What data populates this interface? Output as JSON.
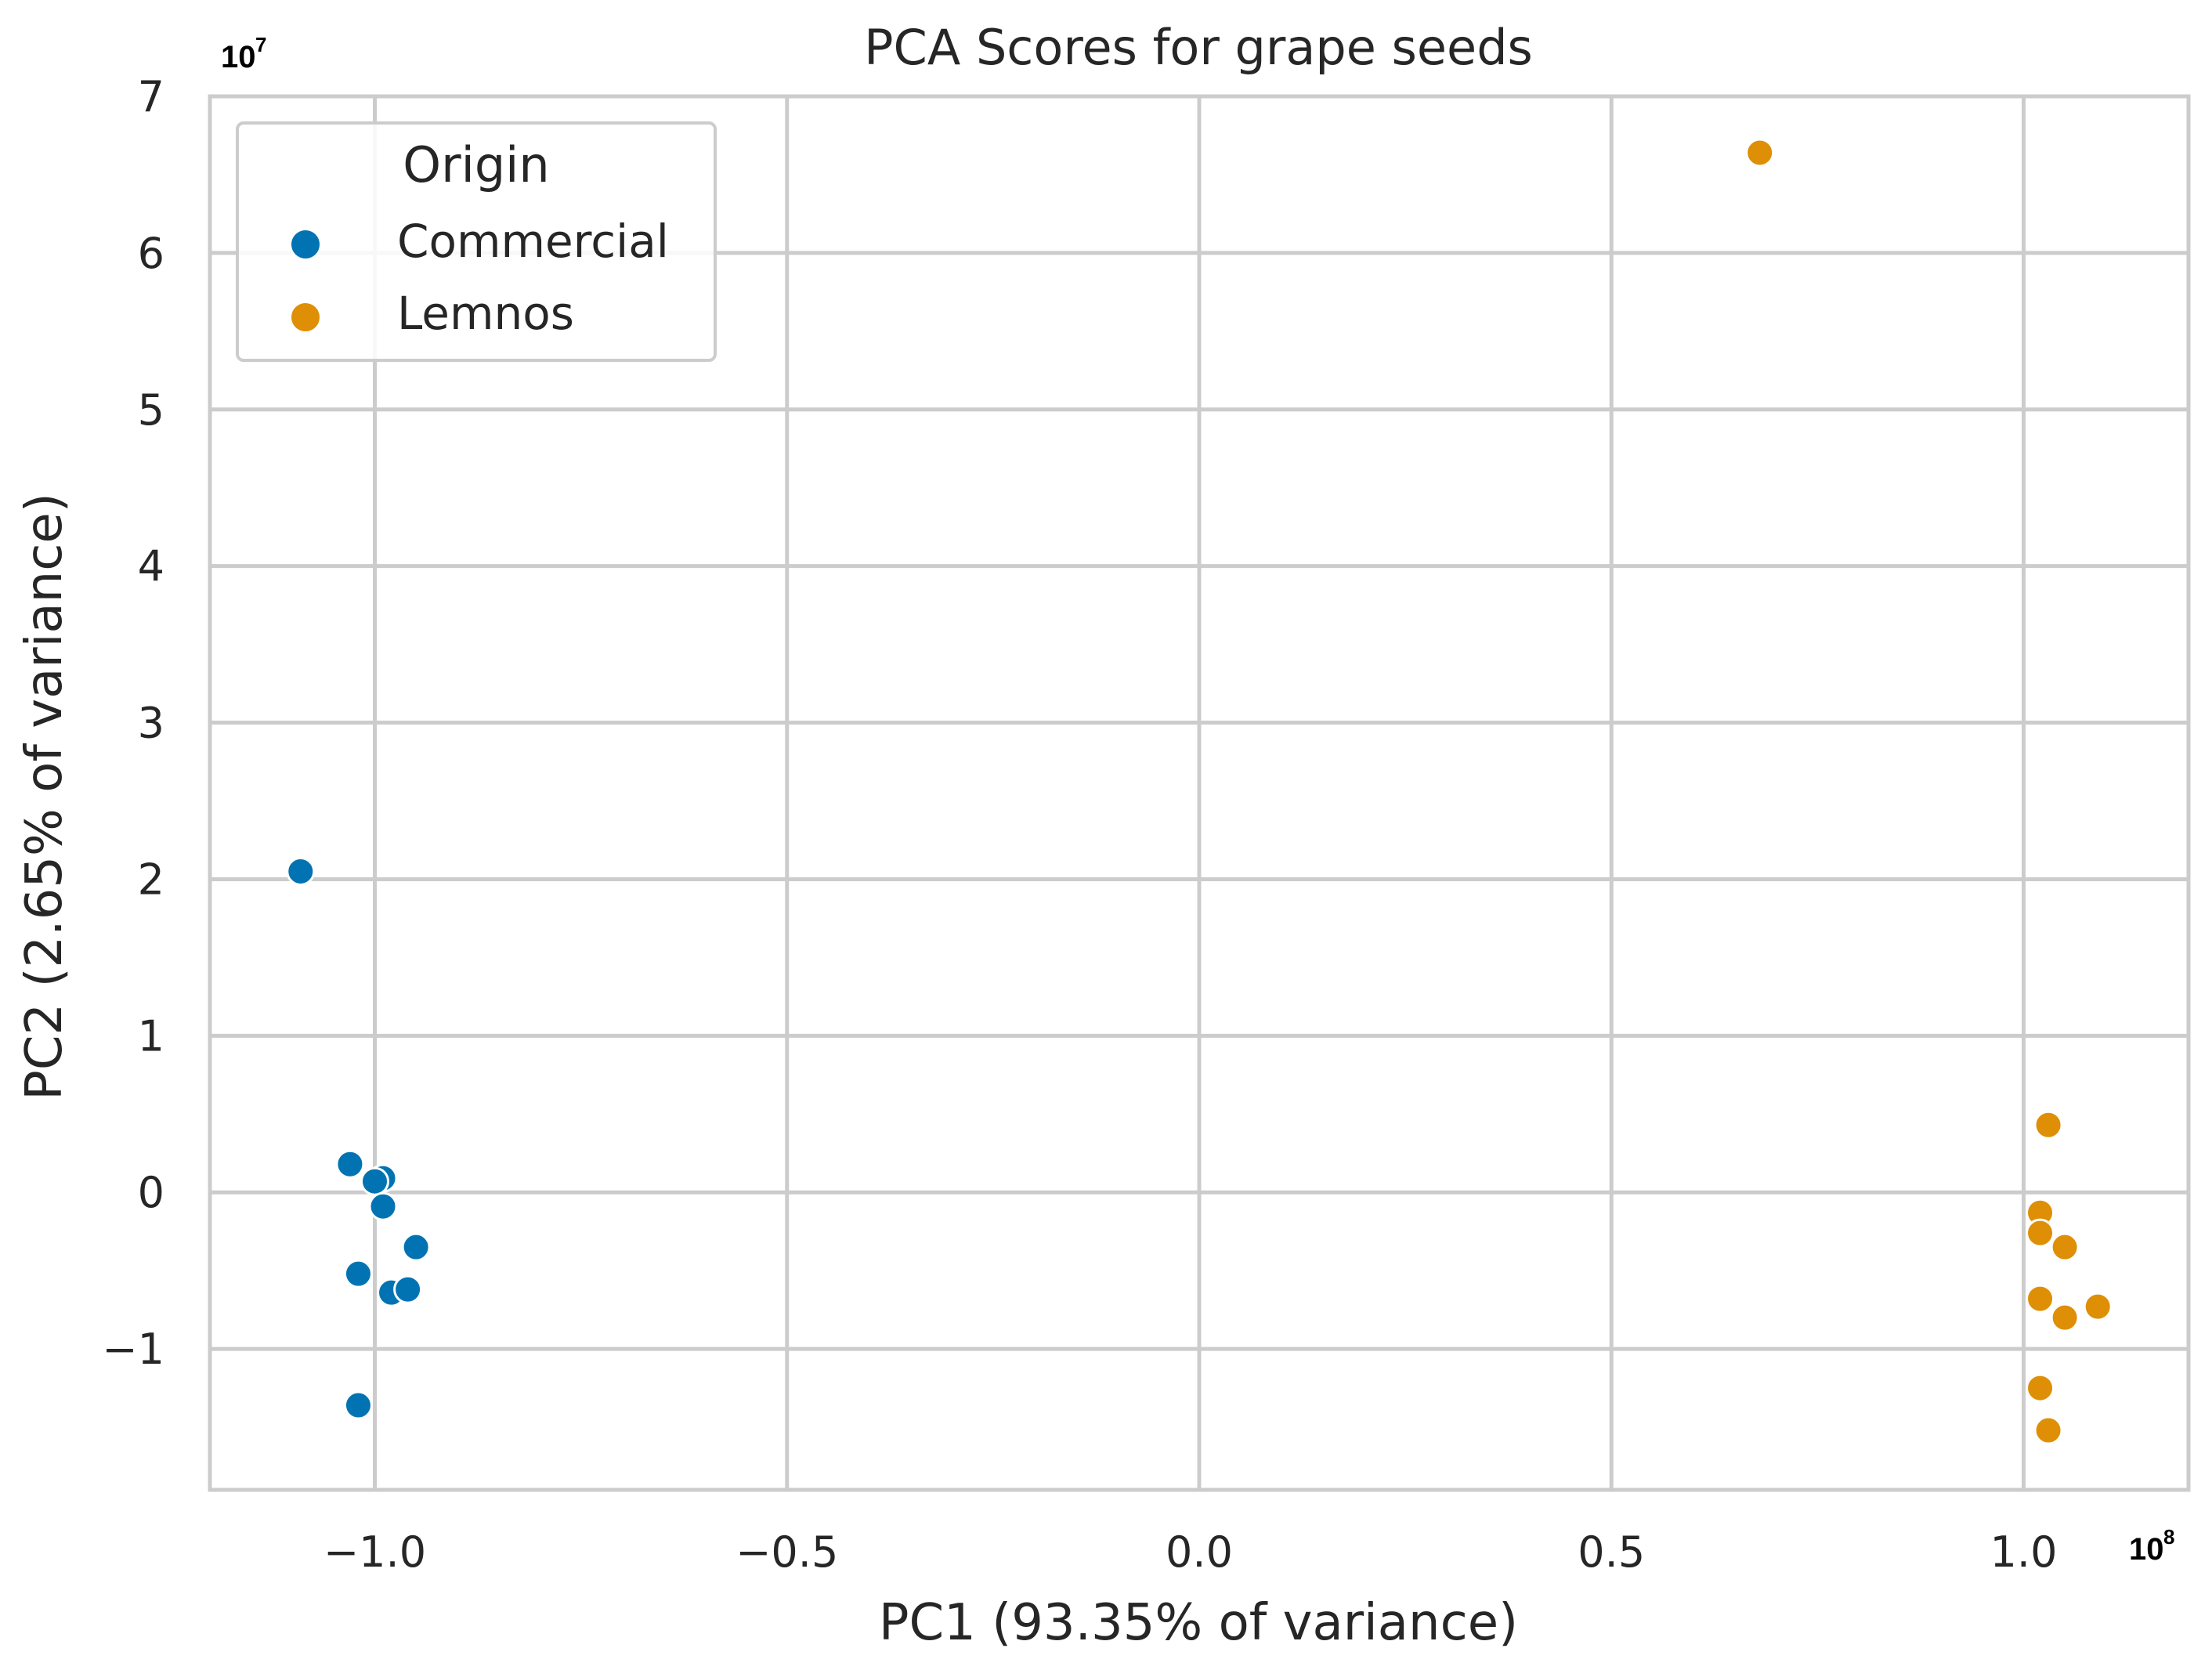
{
  "chart_data": {
    "type": "scatter",
    "title": "PCA Scores for grape seeds",
    "xlabel": "PC1 (93.35% of variance)",
    "ylabel": "PC2 (2.65% of variance)",
    "x_offset": {
      "base": "10",
      "exp": "8"
    },
    "y_offset": {
      "base": "10",
      "exp": "7"
    },
    "xlim": [
      -1.2,
      1.2
    ],
    "ylim": [
      -1.9,
      7.0
    ],
    "xticks": [
      -1.0,
      -0.5,
      0.0,
      0.5,
      1.0
    ],
    "xtick_labels": [
      "−1.0",
      "−0.5",
      "0.0",
      "0.5",
      "1.0"
    ],
    "yticks": [
      -1,
      0,
      1,
      2,
      3,
      4,
      5,
      6,
      7
    ],
    "ytick_labels": [
      "−1",
      "0",
      "1",
      "2",
      "3",
      "4",
      "5",
      "6",
      "7"
    ],
    "grid": true,
    "legend": {
      "title": "Origin",
      "position": "top-left",
      "entries": [
        {
          "label": "Commercial",
          "color": "#0173b2"
        },
        {
          "label": "Lemnos",
          "color": "#de8f05"
        }
      ]
    },
    "series": [
      {
        "name": "Commercial",
        "color": "#0173b2",
        "points": [
          {
            "x": -1.09,
            "y": 2.05
          },
          {
            "x": -1.03,
            "y": 0.18
          },
          {
            "x": -0.99,
            "y": 0.09
          },
          {
            "x": -1.0,
            "y": 0.07
          },
          {
            "x": -0.99,
            "y": -0.09
          },
          {
            "x": -0.95,
            "y": -0.35
          },
          {
            "x": -1.02,
            "y": -0.52
          },
          {
            "x": -0.98,
            "y": -0.64
          },
          {
            "x": -0.96,
            "y": -0.62
          },
          {
            "x": -1.02,
            "y": -1.36
          }
        ]
      },
      {
        "name": "Lemnos",
        "color": "#de8f05",
        "points": [
          {
            "x": 0.68,
            "y": 6.64
          },
          {
            "x": 1.03,
            "y": 0.43
          },
          {
            "x": 1.02,
            "y": -0.13
          },
          {
            "x": 1.02,
            "y": -0.26
          },
          {
            "x": 1.05,
            "y": -0.35
          },
          {
            "x": 1.02,
            "y": -0.68
          },
          {
            "x": 1.09,
            "y": -0.73
          },
          {
            "x": 1.05,
            "y": -0.8
          },
          {
            "x": 1.02,
            "y": -1.25
          },
          {
            "x": 1.03,
            "y": -1.52
          }
        ]
      }
    ]
  }
}
